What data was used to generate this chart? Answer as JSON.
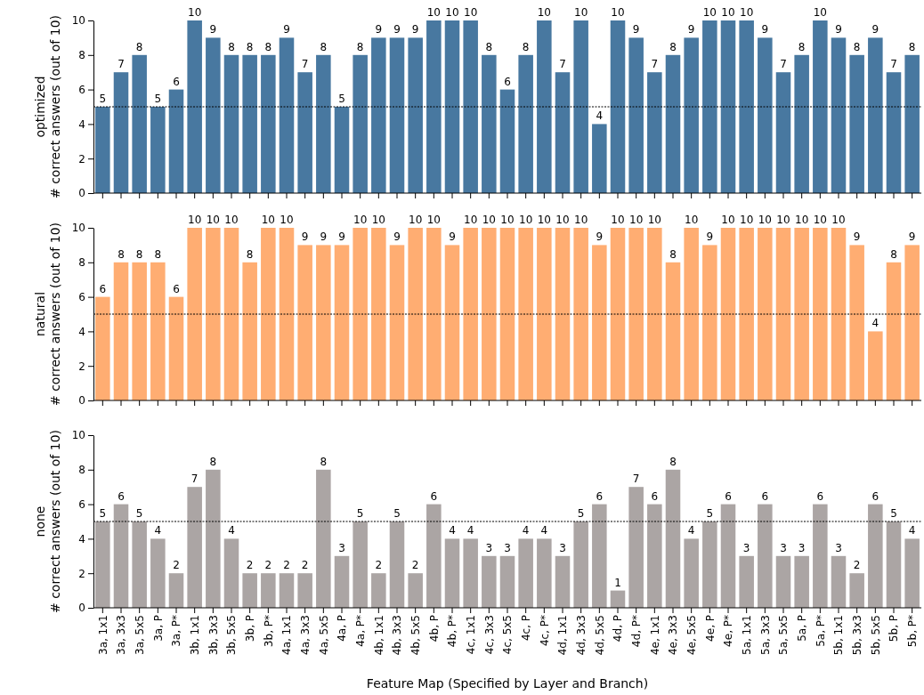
{
  "chart_data": [
    {
      "type": "bar",
      "ylabel": "optimized\n# correct answers (out of 10)",
      "categories": [
        null,
        null,
        null,
        null,
        null,
        null,
        null,
        null,
        null,
        null,
        null,
        null,
        null,
        null,
        null,
        null,
        null,
        null,
        null,
        null,
        null,
        null,
        null,
        null,
        null,
        null,
        null,
        null,
        null,
        null,
        null,
        null,
        null,
        null,
        null,
        null,
        null,
        null,
        null,
        null,
        null,
        null,
        null,
        null,
        null
      ],
      "values": [
        5,
        7,
        8,
        5,
        6,
        10,
        9,
        8,
        8,
        8,
        9,
        7,
        8,
        5,
        8,
        9,
        9,
        9,
        10,
        10,
        10,
        8,
        6,
        8,
        10,
        7,
        10,
        4,
        10,
        9,
        7,
        8,
        9,
        10,
        10,
        10,
        9,
        7,
        8,
        10,
        9,
        8,
        9,
        7,
        8
      ],
      "color": "#4878a0",
      "ylim": [
        0,
        10
      ],
      "yticks": [
        0,
        2,
        4,
        6,
        8,
        10
      ],
      "data_labels": true,
      "tick_labels": "y",
      "ref_lines": [
        {
          "axis": "y",
          "value": 5,
          "color": "#000000",
          "line_style": "dotted"
        }
      ]
    },
    {
      "type": "bar",
      "ylabel": "natural\n# correct answers (out of 10)",
      "categories": [
        null,
        null,
        null,
        null,
        null,
        null,
        null,
        null,
        null,
        null,
        null,
        null,
        null,
        null,
        null,
        null,
        null,
        null,
        null,
        null,
        null,
        null,
        null,
        null,
        null,
        null,
        null,
        null,
        null,
        null,
        null,
        null,
        null,
        null,
        null,
        null,
        null,
        null,
        null,
        null,
        null,
        null,
        null,
        null,
        null
      ],
      "values": [
        6,
        8,
        8,
        8,
        6,
        10,
        10,
        10,
        8,
        10,
        10,
        9,
        9,
        9,
        10,
        10,
        9,
        10,
        10,
        9,
        10,
        10,
        10,
        10,
        10,
        10,
        10,
        9,
        10,
        10,
        10,
        8,
        10,
        9,
        10,
        10,
        10,
        10,
        10,
        10,
        10,
        9,
        4,
        8,
        9
      ],
      "color": "#ffad72",
      "ylim": [
        0,
        10
      ],
      "yticks": [
        0,
        2,
        4,
        6,
        8,
        10
      ],
      "data_labels": true,
      "tick_labels": "y",
      "ref_lines": [
        {
          "axis": "y",
          "value": 5,
          "color": "#000000",
          "line_style": "dotted"
        }
      ]
    },
    {
      "type": "bar",
      "xlabel": "Feature Map (Specified by Layer and Branch)",
      "ylabel": "none\n# correct answers (out of 10)",
      "categories": [
        "3a, 1x1",
        "3a, 3x3",
        "3a, 5x5",
        "3a, P",
        "3a, P*",
        "3b, 1x1",
        "3b, 3x3",
        "3b, 5x5",
        "3b, P",
        "3b, P*",
        "4a, 1x1",
        "4a, 3x3",
        "4a, 5x5",
        "4a, P",
        "4a, P*",
        "4b, 1x1",
        "4b, 3x3",
        "4b, 5x5",
        "4b, P",
        "4b, P*",
        "4c, 1x1",
        "4c, 3x3",
        "4c, 5x5",
        "4c, P",
        "4c, P*",
        "4d, 1x1",
        "4d, 3x3",
        "4d, 5x5",
        "4d, P",
        "4d, P*",
        "4e, 1x1",
        "4e, 3x3",
        "4e, 5x5",
        "4e, P",
        "4e, P*",
        "5a, 1x1",
        "5a, 3x3",
        "5a, 5x5",
        "5a, P",
        "5a, P*",
        "5b, 1x1",
        "5b, 3x3",
        "5b, 5x5",
        "5b, P",
        "5b, P*"
      ],
      "values": [
        5,
        6,
        5,
        4,
        2,
        7,
        8,
        4,
        2,
        2,
        2,
        2,
        8,
        3,
        5,
        2,
        5,
        2,
        6,
        4,
        4,
        3,
        3,
        4,
        4,
        3,
        5,
        6,
        1,
        7,
        6,
        8,
        4,
        5,
        6,
        3,
        6,
        3,
        3,
        6,
        3,
        2,
        6,
        5,
        4
      ],
      "color": "#aba5a4",
      "ylim": [
        0,
        10
      ],
      "yticks": [
        0,
        2,
        4,
        6,
        8,
        10
      ],
      "data_labels": true,
      "ref_lines": [
        {
          "axis": "y",
          "value": 5,
          "color": "#000000",
          "line_style": "dotted"
        }
      ]
    }
  ]
}
